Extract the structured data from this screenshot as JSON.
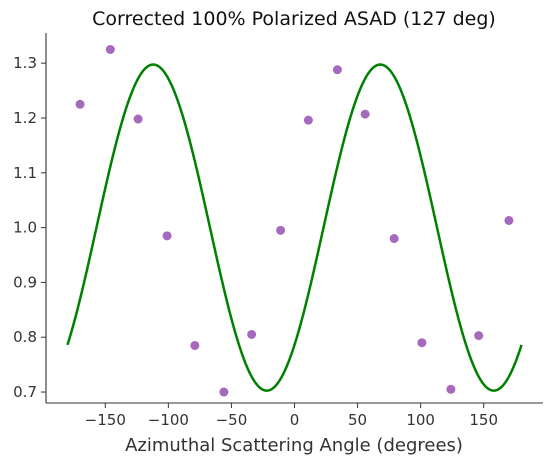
{
  "chart_data": {
    "type": "scatter",
    "title": "Corrected 100% Polarized ASAD (127 deg)",
    "xlabel": "Azimuthal Scattering Angle (degrees)",
    "ylabel": "",
    "xlim": [
      -197,
      197
    ],
    "ylim": [
      0.68,
      1.355
    ],
    "xticks": [
      -150,
      -100,
      -50,
      0,
      50,
      100,
      150
    ],
    "xtick_labels": [
      "−150",
      "−100",
      "−50",
      "0",
      "50",
      "100",
      "150"
    ],
    "yticks": [
      0.7,
      0.8,
      0.9,
      1.0,
      1.1,
      1.2,
      1.3
    ],
    "ytick_labels": [
      "0.7",
      "0.8",
      "0.9",
      "1.0",
      "1.1",
      "1.2",
      "1.3"
    ],
    "grid": false,
    "series": [
      {
        "kind": "points",
        "color": "#9b59b6",
        "x": [
          -170,
          -146,
          -124,
          -101,
          -79,
          -56,
          -34,
          -11,
          11,
          34,
          56,
          79,
          101,
          124,
          146,
          170
        ],
        "y": [
          1.225,
          1.325,
          1.198,
          0.985,
          0.785,
          0.7,
          0.805,
          0.995,
          1.196,
          1.288,
          1.207,
          0.98,
          0.79,
          0.705,
          0.803,
          1.013
        ]
      },
      {
        "kind": "fit-line",
        "color": "#008000",
        "model": {
          "offset": 1.0,
          "amplitude": 0.2975,
          "phase_deg": -112,
          "frequency": 2
        },
        "x_range": [
          -180,
          180
        ]
      }
    ]
  }
}
